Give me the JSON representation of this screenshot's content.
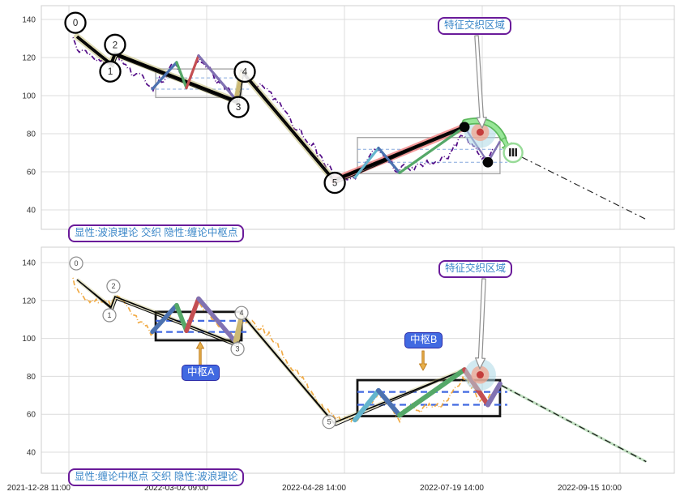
{
  "labels": {
    "legend_top": "显性:波浪理论 交织 隐性:缠论中枢点",
    "legend_bottom": "显性:缠论中枢点 交织 隐性:波浪理论",
    "feature_zone_top": "特征交织区域",
    "feature_zone_bottom": "特征交织区域",
    "pivot_a": "中枢A",
    "pivot_b": "中枢B"
  },
  "colors": {
    "accent_purple": "#6A1B9A",
    "label_blue": "#3A86C8",
    "pivot_label_bg": "#4169E1",
    "price_top": "#4B0082",
    "price_bottom": "#F0A63C",
    "wave_glow": "#BDB76B",
    "impulse_glow": "#F08080",
    "zig_blue": "#4C72B0",
    "zig_green": "#55A868",
    "zig_red": "#C44E52",
    "zig_purple": "#8172B2",
    "zig_cyan": "#64B5CD",
    "zig_tan": "#CCB974",
    "pivot_dash_blue": "#4169E1",
    "target_halo": "#ADD8E6",
    "target_mid": "#F2A58F",
    "target_core": "#C03030",
    "green_arrow": "#98E698",
    "green_arrow_edge": "#5CB85C",
    "orange_arrow_fill": "#E8B04B",
    "orange_arrow_edge": "#C07F23",
    "grid": "#DCDCDC"
  },
  "chart_data": {
    "type": "line",
    "title": "",
    "x_tick_labels": [
      "2021-12-28 11:00",
      "2022-03-02 09:00",
      "2022-04-28 14:00",
      "2022-07-19 14:00",
      "2022-09-15 10:00"
    ],
    "y_tick_labels": [
      140,
      120,
      100,
      80,
      60,
      40
    ],
    "ylim": [
      31,
      147
    ],
    "grid": true,
    "panels": [
      {
        "id": "top",
        "legend": "显性:波浪理论 交织 隐性:缠论中枢点",
        "emphasis": "wave",
        "price_line": "purple dash-dot"
      },
      {
        "id": "bottom",
        "legend": "显性:缠论中枢点 交织 隐性:波浪理论",
        "emphasis": "pivot",
        "price_line": "orange dash-dot"
      }
    ],
    "wave_points": [
      {
        "label": "0",
        "t": 0.059,
        "price": 131
      },
      {
        "label": "1",
        "t": 0.306,
        "price": 116.5
      },
      {
        "label": "2",
        "t": 0.335,
        "price": 122
      },
      {
        "label": "3",
        "t": 1.218,
        "price": 97
      },
      {
        "label": "4",
        "t": 1.253,
        "price": 113
      },
      {
        "label": "5",
        "t": 1.924,
        "price": 55.5
      }
    ],
    "peak_point": {
      "t": 2.871,
      "price": 83.5
    },
    "confirm_point": {
      "t": 3.041,
      "price": 65
    },
    "roman_marker": {
      "label": "Ⅲ",
      "t": 3.224,
      "price": 70
    },
    "target_point": {
      "t": 2.985,
      "price": 80.8
    },
    "projection_end": {
      "t": 4.19,
      "price": 35
    },
    "pivots": [
      {
        "name": "中枢A",
        "t0": 0.63,
        "t1": 1.253,
        "price_low": 99,
        "price_high": 114,
        "range_lines": [
          109.3,
          103.4
        ]
      },
      {
        "name": "中枢B",
        "t0": 2.094,
        "t1": 3.129,
        "price_low": 59,
        "price_high": 78,
        "range_lines": [
          71.8,
          65
        ]
      }
    ],
    "zigzag_a": {
      "points": [
        [
          0.606,
          103.5
        ],
        [
          0.782,
          117.5
        ],
        [
          0.853,
          104
        ],
        [
          0.941,
          121
        ],
        [
          1.206,
          98.5
        ]
      ],
      "tail": [
        [
          1.206,
          98.5
        ],
        [
          1.253,
          112.5
        ],
        [
          1.225,
          99.5
        ]
      ]
    },
    "zigzag_b": {
      "points": [
        [
          2.076,
          57
        ],
        [
          2.247,
          72.5
        ],
        [
          2.4,
          59.5
        ],
        [
          2.871,
          83.5
        ],
        [
          3.041,
          65
        ],
        [
          3.129,
          76
        ]
      ]
    },
    "price_anchors": [
      [
        0.03,
        130.5
      ],
      [
        0.07,
        124
      ],
      [
        0.306,
        116.5
      ],
      [
        0.34,
        121
      ],
      [
        0.5,
        110
      ],
      [
        0.606,
        103.5
      ],
      [
        0.782,
        116
      ],
      [
        0.853,
        104
      ],
      [
        0.941,
        119
      ],
      [
        1.206,
        99
      ],
      [
        1.253,
        111
      ],
      [
        1.45,
        102
      ],
      [
        1.6,
        88
      ],
      [
        1.924,
        57
      ],
      [
        2.076,
        58
      ],
      [
        2.247,
        71
      ],
      [
        2.4,
        60
      ],
      [
        2.55,
        63
      ],
      [
        2.7,
        65
      ],
      [
        2.871,
        80
      ],
      [
        3.0,
        67.5
      ],
      [
        3.09,
        70.5
      ]
    ]
  }
}
